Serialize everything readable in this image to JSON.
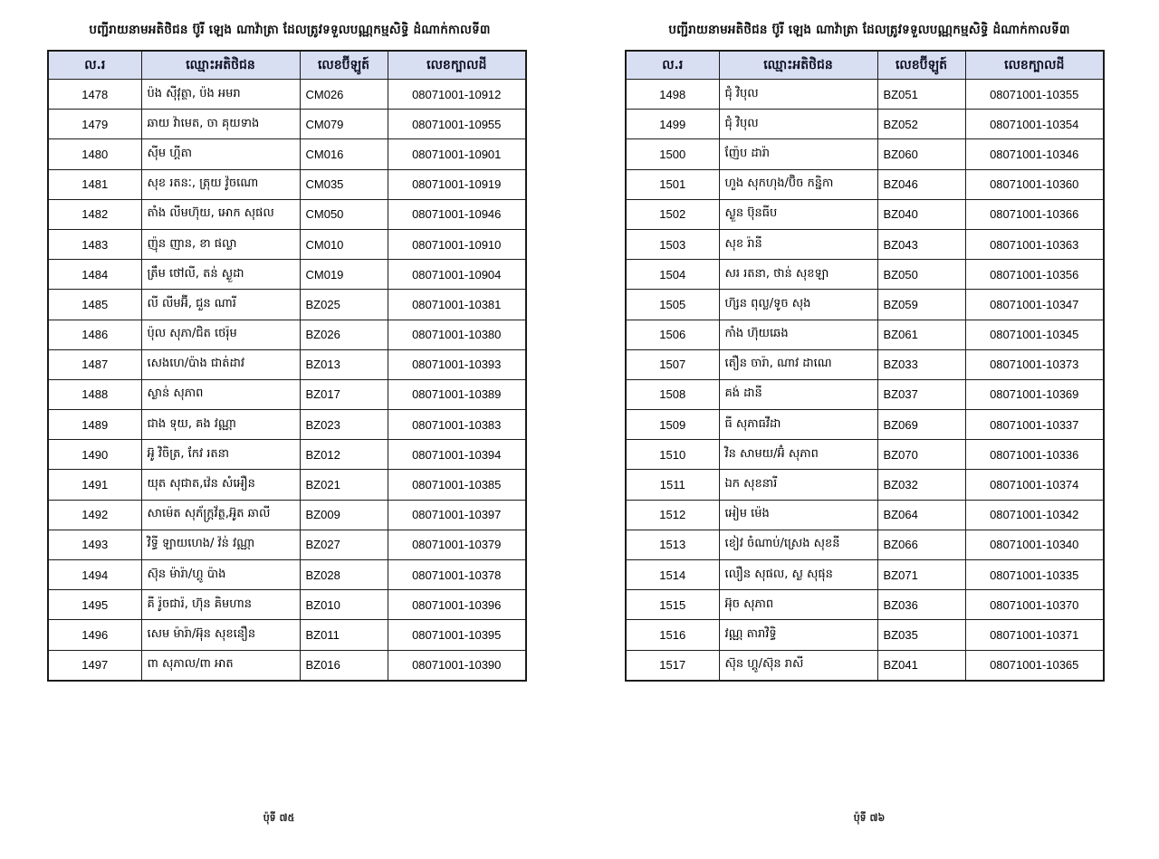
{
  "document": {
    "title": "បញ្ជីរាយនាមអតិថិជន ប៊ូរី ឡេង ណាវ៉ាត្រា ដែលត្រូវទទួលបណ្ណកម្មសិទ្ធិ ដំណាក់កាលទី៣",
    "columns": [
      "ល.រ",
      "ឈ្មោះអតិថិជន",
      "លេខប៊ីឡូត៍",
      "លេខក្បាលដី"
    ],
    "header_bg": "#d9dff2",
    "border_color": "#1b1b1b",
    "left_page": {
      "footer": "ប៉ុទី ៧៥",
      "rows": [
        [
          "1478",
          "ប៉ង ស៊ីវុត្ថា, ប៉ង អមរា",
          "CM026",
          "08071001-10912"
        ],
        [
          "1479",
          "ឆាយ វ៉ាមេត, ចា គុយទាង",
          "CM079",
          "08071001-10955"
        ],
        [
          "1480",
          "ស៊ីម ហ្គីតា",
          "CM016",
          "08071001-10901"
        ],
        [
          "1481",
          "សុខ រតនៈ, ត្រុយ វ៉ូចណោ",
          "CM035",
          "08071001-10919"
        ],
        [
          "1482",
          "តាំង លីមហ៊ុយ, អោក សុផល",
          "CM050",
          "08071001-10946"
        ],
        [
          "1483",
          "ញ៉ុន ញាន, ខា ផល្លា",
          "CM010",
          "08071001-10910"
        ],
        [
          "1484",
          "ត្រឹម ថៅលី, តន់ ស្ងួដា",
          "CM019",
          "08071001-10904"
        ],
        [
          "1485",
          "លី លីមអ៊ី, ជួន ណារី",
          "BZ025",
          "08071001-10381"
        ],
        [
          "1486",
          "ប៉ុល សុភា/ជិត ថេរ៉ុម",
          "BZ026",
          "08071001-10380"
        ],
        [
          "1487",
          " សេងហេ/ប៉ាង ជាត់ដាវ",
          "BZ013",
          "08071001-10393"
        ],
        [
          "1488",
          "ស្ងាន់ សុភាព",
          "BZ017",
          "08071001-10389"
        ],
        [
          "1489",
          "ជាង ទុយ, គង វណ្ណា",
          "BZ023",
          "08071001-10383"
        ],
        [
          "1490",
          "អ៊ូ វិចិត្រ, កែវ រតនា",
          "BZ012",
          "08071001-10394"
        ],
        [
          "1491",
          "យុត សុជាត,វ៉េន សំអឿន",
          "BZ021",
          "08071001-10385"
        ],
        [
          "1492",
          "សាម៉េត សុភ័ក្រ្តវ័ត្ថ,អ៊ូត ឆាលី",
          "BZ009",
          "08071001-10397"
        ],
        [
          "1493",
          "វិទ្ធី ឡាយហេង/ វ៉ន់ វណ្ណា",
          "BZ027",
          "08071001-10379"
        ],
        [
          "1494",
          "ស៊ុន ម៉ារ៉ា/ហ្គូ ប៉ាង",
          "BZ028",
          "08071001-10378"
        ],
        [
          "1495",
          "គី រ៉ូចជារ៉, ហ៊ុន គិមហាន",
          "BZ010",
          "08071001-10396"
        ],
        [
          "1496",
          "សេម ម៉ារ៉ា/អ៊ុន សុខនឿន",
          "BZ011",
          "08071001-10395"
        ],
        [
          "1497",
          "ពា សុភាល/ពា អាត",
          "BZ016",
          "08071001-10390"
        ]
      ]
    },
    "right_page": {
      "footer": "ប៉ុទី ៧៦",
      "rows": [
        [
          "1498",
          "ជុំ វិបុល",
          "BZ051",
          "08071001-10355"
        ],
        [
          "1499",
          "ជុំ វិបុល",
          "BZ052",
          "08071001-10354"
        ],
        [
          "1500",
          "ញ៉ែប ដារ៉ា",
          "BZ060",
          "08071001-10346"
        ],
        [
          "1501",
          "ហួង សុកហុង/ប៊ិច កន្និកា",
          "BZ046",
          "08071001-10360"
        ],
        [
          "1502",
          "ស្ងួន ប៊ុនធីប",
          "BZ040",
          "08071001-10366"
        ],
        [
          "1503",
          "សុខ រ៉ានី",
          "BZ043",
          "08071001-10363"
        ],
        [
          "1504",
          "សរ រតនា, ថាន់ សុខឡា",
          "BZ050",
          "08071001-10356"
        ],
        [
          "1505",
          "ហ៊្សន ពុល្ល/ទូច សុង",
          "BZ059",
          "08071001-10347"
        ],
        [
          "1506",
          "កាំង ហ៊ុយឆេង",
          "BZ061",
          "08071001-10345"
        ],
        [
          "1507",
          "តឿន ចារ៉ា, ណាវ ដាណេ",
          "BZ033",
          "08071001-10373"
        ],
        [
          "1508",
          "គង់ ដានី",
          "BZ037",
          "08071001-10369"
        ],
        [
          "1509",
          "ធី សុភាធវីដា",
          "BZ069",
          "08071001-10337"
        ],
        [
          "1510",
          "វិន សាមយ/អ៊ំ សុភាព",
          "BZ070",
          "08071001-10336"
        ],
        [
          "1511",
          "ឯក សុខនារី",
          "BZ032",
          "08071001-10374"
        ],
        [
          "1512",
          "អៀម ម៉េង",
          "BZ064",
          "08071001-10342"
        ],
        [
          "1513",
          "ខៀវ ចំណាប់/ស្រេង សុខនី",
          "BZ066",
          "08071001-10340"
        ],
        [
          "1514",
          "លឿន សុផល, ស្ង សុផុន",
          "BZ071",
          "08071001-10335"
        ],
        [
          "1515",
          "អ៊ុច សុភាព",
          "BZ036",
          "08071001-10370"
        ],
        [
          "1516",
          "វណ្ណ តារាវិទ្ធិ",
          "BZ035",
          "08071001-10371"
        ],
        [
          "1517",
          "ស៊ុន ហ្គូ/ស៊ុន រាសី",
          "BZ041",
          "08071001-10365"
        ]
      ]
    }
  }
}
